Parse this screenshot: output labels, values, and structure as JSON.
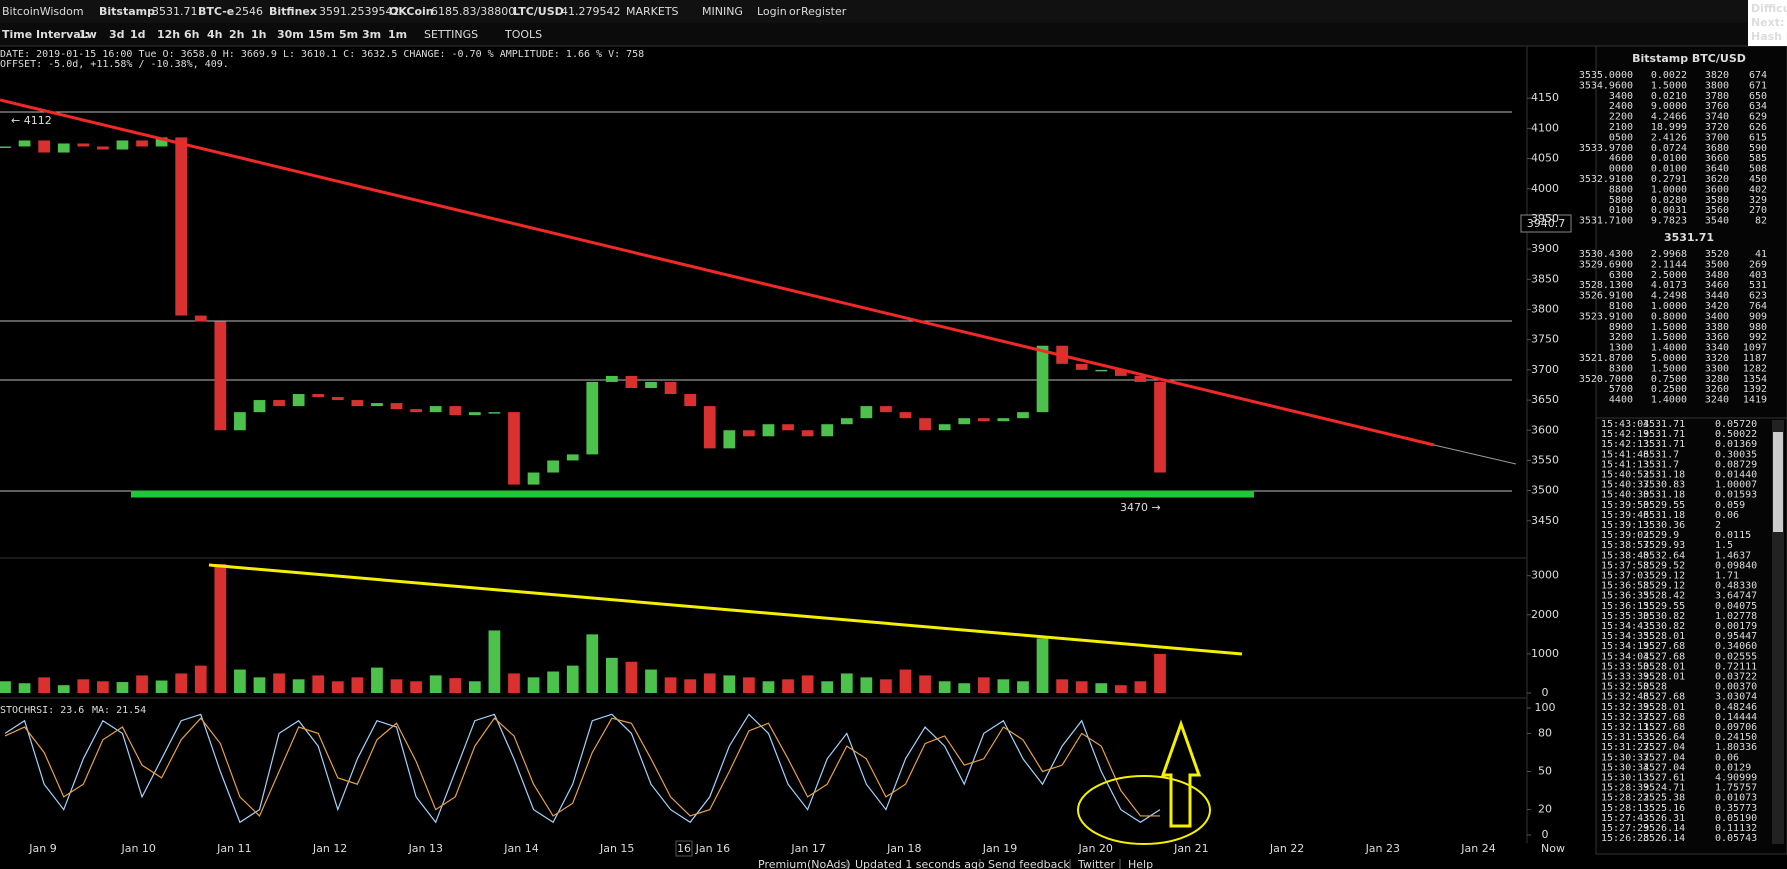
{
  "header": {
    "brand": "BitcoinWisdom",
    "tickers": [
      {
        "name": "Bitstamp",
        "price": "3531.71"
      },
      {
        "name": "BTC-e",
        "price": "2546"
      },
      {
        "name": "Bitfinex",
        "price": "3591.2539542"
      },
      {
        "name": "OKCoin",
        "price": "6185.83/38800"
      },
      {
        "name": "LTC/USD",
        "price": "41.279542"
      }
    ],
    "menus": [
      "MARKETS",
      "MINING"
    ],
    "login": "Login",
    "or": "or",
    "register": "Register",
    "side": [
      "Difficu",
      "Next:",
      "Hash R"
    ]
  },
  "toolbar": {
    "label": "Time Interval:",
    "intervals": [
      "1w",
      "3d",
      "1d",
      "12h",
      "6h",
      "4h",
      "2h",
      "1h",
      "30m",
      "15m",
      "5m",
      "3m",
      "1m"
    ],
    "settings": "SETTINGS",
    "tools": "TOOLS"
  },
  "info": [
    "DATE: 2019-01-15 16:00 Tue   O: 3658.0   H: 3669.9   L: 3610.1   C: 3632.5   CHANGE: -0.70 %   AMPLITUDE: 1.66 %   V: 758",
    "OFFSET: -5.0d, +11.58% / -10.38%, 409."
  ],
  "chart_data": [
    {
      "type": "candlestick",
      "up_color": "#4cc14c",
      "down_color": "#d93030",
      "values": [
        4070,
        4080,
        4060,
        4075,
        4070,
        4065,
        4080,
        4070,
        4085,
        3790,
        3780,
        3600,
        3630,
        3650,
        3640,
        3660,
        3655,
        3650,
        3640,
        3645,
        3635,
        3630,
        3640,
        3625,
        3630,
        3630,
        3510,
        3530,
        3550,
        3560,
        3680,
        3690,
        3670,
        3680,
        3660,
        3640,
        3570,
        3600,
        3590,
        3610,
        3600,
        3590,
        3610,
        3620,
        3640,
        3630,
        3620,
        3600,
        3610,
        3620,
        3615,
        3620,
        3630,
        3740,
        3710,
        3700,
        3700,
        3690,
        3680,
        3530
      ],
      "ylim": [
        3400,
        4200
      ],
      "yticks": [
        3450,
        3500,
        3550,
        3600,
        3650,
        3700,
        3750,
        3800,
        3850,
        3900,
        3950,
        4000,
        4050,
        4100,
        4150
      ]
    },
    {
      "type": "bar",
      "up_color": "#4cc14c",
      "down_color": "#d93030",
      "values": [
        300,
        250,
        400,
        200,
        350,
        300,
        280,
        450,
        320,
        500,
        700,
        3300,
        600,
        400,
        500,
        350,
        450,
        300,
        400,
        650,
        350,
        300,
        450,
        380,
        300,
        1600,
        500,
        400,
        550,
        700,
        1500,
        900,
        800,
        600,
        400,
        350,
        500,
        450,
        400,
        300,
        350,
        450,
        300,
        500,
        400,
        350,
        600,
        450,
        300,
        250,
        400,
        350,
        300,
        1400,
        350,
        300,
        250,
        200,
        300,
        1000
      ],
      "ylim": [
        0,
        3300
      ],
      "yticks": [
        0,
        1000,
        2000,
        3000
      ]
    },
    {
      "type": "line",
      "series": [
        {
          "name": "STOCHRSI: 23.6",
          "color": "#9fd3ff",
          "values": [
            80,
            90,
            40,
            20,
            60,
            90,
            80,
            30,
            60,
            90,
            95,
            50,
            10,
            20,
            80,
            90,
            70,
            20,
            60,
            90,
            85,
            30,
            10,
            50,
            90,
            95,
            60,
            20,
            10,
            40,
            90,
            95,
            80,
            40,
            20,
            10,
            30,
            70,
            95,
            80,
            40,
            20,
            60,
            80,
            40,
            20,
            60,
            85,
            70,
            40,
            80,
            90,
            60,
            40,
            70,
            90,
            50,
            20,
            10,
            20
          ]
        },
        {
          "name": "MA: 21.54",
          "color": "#e8a040",
          "values": [
            78,
            85,
            65,
            30,
            40,
            75,
            85,
            55,
            45,
            75,
            92,
            72,
            30,
            15,
            50,
            85,
            80,
            45,
            40,
            75,
            88,
            58,
            20,
            30,
            70,
            92,
            78,
            40,
            15,
            25,
            65,
            92,
            88,
            60,
            30,
            15,
            20,
            50,
            82,
            88,
            60,
            30,
            40,
            70,
            60,
            30,
            40,
            72,
            78,
            55,
            60,
            85,
            75,
            50,
            55,
            80,
            70,
            35,
            15,
            15
          ]
        }
      ],
      "ylim": [
        0,
        100
      ],
      "yticks": [
        0,
        20,
        50,
        80,
        100
      ]
    }
  ],
  "time_axis": {
    "labels": [
      "Jan 9",
      "Jan 10",
      "Jan 11",
      "Jan 12",
      "Jan 13",
      "Jan 14",
      "Jan 15",
      "Jan 16",
      "Jan 17",
      "Jan 18",
      "Jan 19",
      "Jan 20",
      "Jan 21",
      "Jan 22",
      "Jan 23",
      "Jan 24"
    ],
    "now": "Now",
    "cursor": "16"
  },
  "annotations": {
    "high": "← 4112",
    "low": "3470 →",
    "cursor_price": "3940.7"
  },
  "orderbook": {
    "title": "Bitstamp BTC/USD",
    "asks": [
      [
        "3535.0000",
        "0.0022",
        "3820",
        "674"
      ],
      [
        "3534.9600",
        "1.5000",
        "3800",
        "671"
      ],
      [
        "3400",
        "0.0210",
        "3780",
        "650"
      ],
      [
        "2400",
        "9.0000",
        "3760",
        "634"
      ],
      [
        "2200",
        "4.2466",
        "3740",
        "629"
      ],
      [
        "2100",
        "18.999",
        "3720",
        "626"
      ],
      [
        "0500",
        "2.4126",
        "3700",
        "615"
      ],
      [
        "3533.9700",
        "0.0724",
        "3680",
        "590"
      ],
      [
        "4600",
        "0.0100",
        "3660",
        "585"
      ],
      [
        "0000",
        "0.0100",
        "3640",
        "508"
      ],
      [
        "3532.9100",
        "0.2791",
        "3620",
        "450"
      ],
      [
        "8800",
        "1.0000",
        "3600",
        "402"
      ],
      [
        "5800",
        "0.0280",
        "3580",
        "329"
      ],
      [
        "0100",
        "0.0031",
        "3560",
        "270"
      ],
      [
        "3531.7100",
        "9.7823",
        "3540",
        "82"
      ]
    ],
    "last": "3531.71",
    "bids": [
      [
        "3530.4300",
        "2.9968",
        "3520",
        "41"
      ],
      [
        "3529.6900",
        "2.1144",
        "3500",
        "269"
      ],
      [
        "6300",
        "2.5000",
        "3480",
        "403"
      ],
      [
        "3528.1300",
        "4.0173",
        "3460",
        "531"
      ],
      [
        "3526.9100",
        "4.2498",
        "3440",
        "623"
      ],
      [
        "8100",
        "1.0000",
        "3420",
        "764"
      ],
      [
        "3523.9100",
        "0.8000",
        "3400",
        "909"
      ],
      [
        "8900",
        "1.5000",
        "3380",
        "980"
      ],
      [
        "3200",
        "1.5000",
        "3360",
        "992"
      ],
      [
        "1300",
        "1.4000",
        "3340",
        "1097"
      ],
      [
        "3521.8700",
        "5.0000",
        "3320",
        "1187"
      ],
      [
        "8300",
        "1.5000",
        "3300",
        "1282"
      ],
      [
        "3520.7000",
        "0.7500",
        "3280",
        "1354"
      ],
      [
        "5700",
        "0.2500",
        "3260",
        "1392"
      ],
      [
        "4400",
        "1.4000",
        "3240",
        "1419"
      ]
    ]
  },
  "trades": [
    {
      "time": "15:43:04",
      "price": "3531.71",
      "amount": "0.05720",
      "side": "buy"
    },
    {
      "time": "15:42:19",
      "price": "3531.71",
      "amount": "0.50022",
      "side": "buy"
    },
    {
      "time": "15:42:13",
      "price": "3531.71",
      "amount": "0.01369",
      "side": "buy"
    },
    {
      "time": "15:41:46",
      "price": "3531.7",
      "amount": "0.30035",
      "side": "buy"
    },
    {
      "time": "15:41:13",
      "price": "3531.7",
      "amount": "0.08729",
      "side": "buy"
    },
    {
      "time": "15:40:52",
      "price": "3531.18",
      "amount": "0.01440",
      "side": "buy"
    },
    {
      "time": "15:40:37",
      "price": "3530.83",
      "amount": "1.00007",
      "side": "buy"
    },
    {
      "time": "15:40:30",
      "price": "3531.18",
      "amount": "0.01593",
      "side": "buy"
    },
    {
      "time": "15:39:50",
      "price": "3529.55",
      "amount": "0.059",
      "side": "sell"
    },
    {
      "time": "15:39:46",
      "price": "3531.18",
      "amount": "0.06",
      "side": "buy"
    },
    {
      "time": "15:39:13",
      "price": "3530.36",
      "amount": "2",
      "side": "buy"
    },
    {
      "time": "15:39:02",
      "price": "3529.9",
      "amount": "0.0115",
      "side": "buy"
    },
    {
      "time": "15:38:57",
      "price": "3529.93",
      "amount": "1.5",
      "side": "buy"
    },
    {
      "time": "15:38:40",
      "price": "3532.64",
      "amount": "1.4637",
      "side": "buy"
    },
    {
      "time": "15:37:58",
      "price": "3529.52",
      "amount": "0.09840",
      "side": "buy"
    },
    {
      "time": "15:37:03",
      "price": "3529.12",
      "amount": "1.71",
      "side": "sell"
    },
    {
      "time": "15:36:58",
      "price": "3529.12",
      "amount": "0.48330",
      "side": "sell"
    },
    {
      "time": "15:36:35",
      "price": "3528.42",
      "amount": "3.64747",
      "side": "sell"
    },
    {
      "time": "15:36:15",
      "price": "3529.55",
      "amount": "0.04075",
      "side": "sell"
    },
    {
      "time": "15:35:30",
      "price": "3530.82",
      "amount": "1.02778",
      "side": "buy"
    },
    {
      "time": "15:34:43",
      "price": "3530.82",
      "amount": "0.00179",
      "side": "buy"
    },
    {
      "time": "15:34:35",
      "price": "3528.01",
      "amount": "0.95447",
      "side": "buy"
    },
    {
      "time": "15:34:19",
      "price": "3527.68",
      "amount": "0.34060",
      "side": "sell"
    },
    {
      "time": "15:34:04",
      "price": "3527.68",
      "amount": "0.02555",
      "side": "sell"
    },
    {
      "time": "15:33:50",
      "price": "3528.01",
      "amount": "0.72111",
      "side": "buy"
    },
    {
      "time": "15:33:39",
      "price": "3528.01",
      "amount": "0.03722",
      "side": "buy"
    },
    {
      "time": "15:32:50",
      "price": "3528",
      "amount": "0.00370",
      "side": "buy"
    },
    {
      "time": "15:32:46",
      "price": "3527.68",
      "amount": "3.03074",
      "side": "sell"
    },
    {
      "time": "15:32:39",
      "price": "3528.01",
      "amount": "0.48246",
      "side": "buy"
    },
    {
      "time": "15:32:37",
      "price": "3527.68",
      "amount": "0.14444",
      "side": "sell"
    },
    {
      "time": "15:32:11",
      "price": "3527.68",
      "amount": "0.09706",
      "side": "buy"
    },
    {
      "time": "15:31:53",
      "price": "3526.64",
      "amount": "0.24150",
      "side": "buy"
    },
    {
      "time": "15:31:27",
      "price": "3527.04",
      "amount": "1.80336",
      "side": "buy"
    },
    {
      "time": "15:30:37",
      "price": "3527.04",
      "amount": "0.06",
      "side": "buy"
    },
    {
      "time": "15:30:34",
      "price": "3527.04",
      "amount": "0.0129",
      "side": "buy"
    },
    {
      "time": "15:30:13",
      "price": "3527.61",
      "amount": "4.90999",
      "side": "buy"
    },
    {
      "time": "15:28:39",
      "price": "3524.71",
      "amount": "1.75757",
      "side": "sell"
    },
    {
      "time": "15:28:22",
      "price": "3525.38",
      "amount": "0.01073",
      "side": "sell"
    },
    {
      "time": "15:28:13",
      "price": "3525.16",
      "amount": "0.35773",
      "side": "sell"
    },
    {
      "time": "15:27:43",
      "price": "3526.31",
      "amount": "0.05190",
      "side": "buy"
    },
    {
      "time": "15:27:29",
      "price": "3526.14",
      "amount": "0.11132",
      "side": "buy"
    },
    {
      "time": "15:26:28",
      "price": "3526.14",
      "amount": "0.05743",
      "side": "sell"
    }
  ],
  "footer": [
    "Premium(NoAds)",
    "Updated 1 seconds ago",
    "Send feedback",
    "Twitter",
    "Help"
  ]
}
